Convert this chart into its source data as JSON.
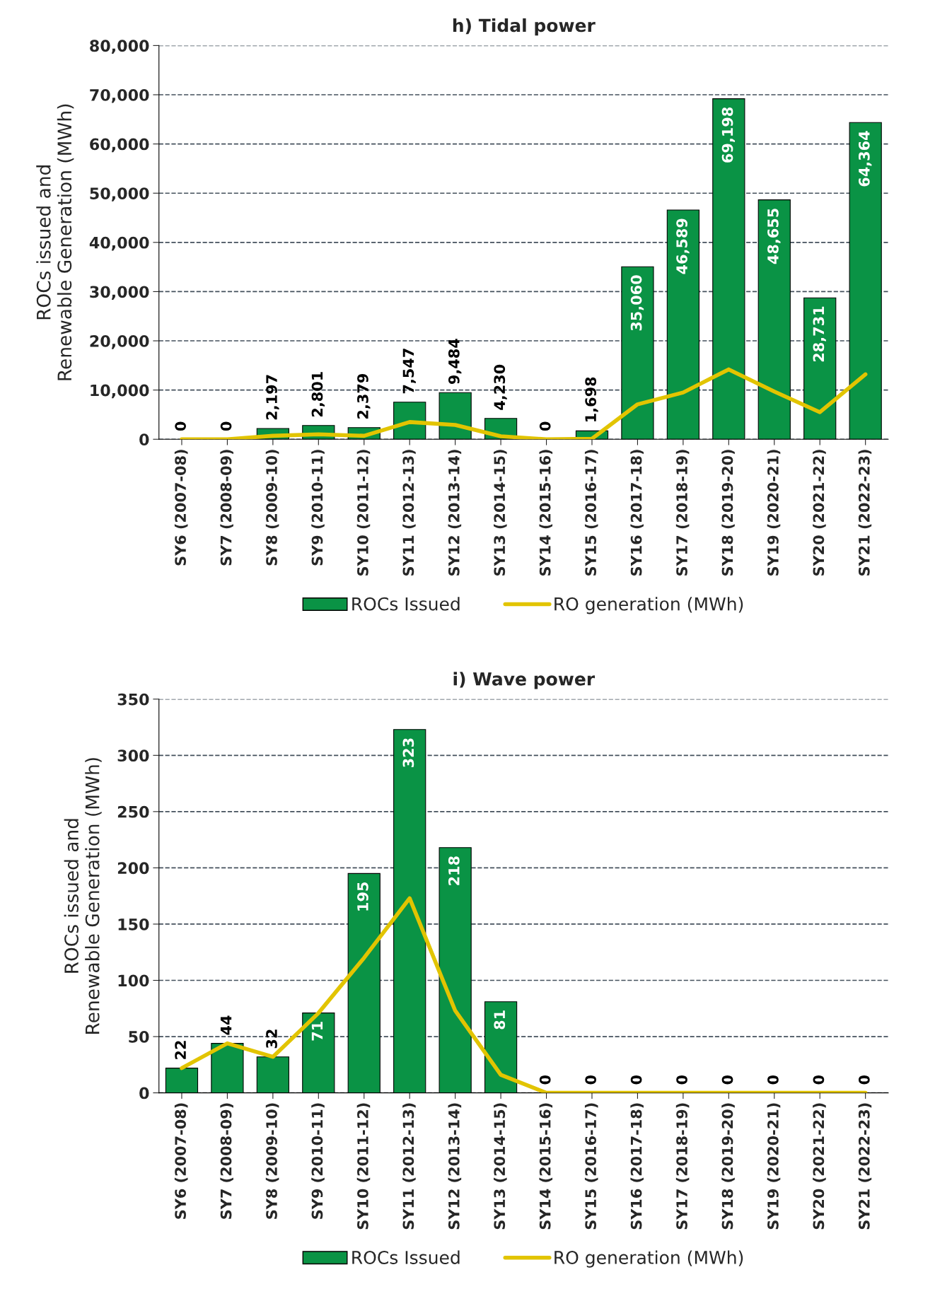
{
  "chart_data": [
    {
      "type": "bar",
      "title": "h) Tidal power",
      "ylabel": "ROCs issued and\nRenewable Generation (MWh)",
      "categories": [
        "SY6 (2007-08)",
        "SY7 (2008-09)",
        "SY8 (2009-10)",
        "SY9 (2010-11)",
        "SY10 (2011-12)",
        "SY11 (2012-13)",
        "SY12 (2013-14)",
        "SY13 (2014-15)",
        "SY14 (2015-16)",
        "SY15 (2016-17)",
        "SY16 (2017-18)",
        "SY17 (2018-19)",
        "SY18 (2019-20)",
        "SY19 (2020-21)",
        "SY20 (2021-22)",
        "SY21 (2022-23)"
      ],
      "series": [
        {
          "name": "ROCs Issued",
          "color": "#0a9345",
          "values": [
            0,
            0,
            2197,
            2801,
            2379,
            7547,
            9484,
            4230,
            0,
            1698,
            35060,
            46589,
            69198,
            48655,
            28731,
            64364
          ],
          "value_labels": [
            "0",
            "0",
            "2,197",
            "2,801",
            "2,379",
            "7,547",
            "9,484",
            "4,230",
            "0",
            "1,698",
            "35,060",
            "46,589",
            "69,198",
            "48,655",
            "28,731",
            "64,364"
          ]
        },
        {
          "name": "RO generation (MWh)",
          "type": "line",
          "color": "#e2c400",
          "values": [
            0,
            0,
            700,
            1000,
            700,
            3500,
            2900,
            600,
            0,
            100,
            7100,
            9500,
            14200,
            9700,
            5500,
            13200
          ]
        }
      ],
      "ylim": [
        0,
        80000
      ],
      "yticks": [
        {
          "value": 0,
          "label": "0"
        },
        {
          "value": 10000,
          "label": "10,000"
        },
        {
          "value": 20000,
          "label": "20,000"
        },
        {
          "value": 30000,
          "label": "30,000"
        },
        {
          "value": 40000,
          "label": "40,000"
        },
        {
          "value": 50000,
          "label": "50,000"
        },
        {
          "value": 60000,
          "label": "60,000"
        },
        {
          "value": 70000,
          "label": "70,000"
        },
        {
          "value": 80000,
          "label": "80,000"
        }
      ],
      "grid": "y",
      "legend": "bottom"
    },
    {
      "type": "bar",
      "title": "i) Wave power",
      "ylabel": "ROCs issued and\nRenewable Generation (MWh)",
      "categories": [
        "SY6 (2007-08)",
        "SY7 (2008-09)",
        "SY8 (2009-10)",
        "SY9 (2010-11)",
        "SY10 (2011-12)",
        "SY11 (2012-13)",
        "SY12 (2013-14)",
        "SY13 (2014-15)",
        "SY14 (2015-16)",
        "SY15 (2016-17)",
        "SY16 (2017-18)",
        "SY17 (2018-19)",
        "SY18 (2019-20)",
        "SY19 (2020-21)",
        "SY20 (2021-22)",
        "SY21 (2022-23)"
      ],
      "series": [
        {
          "name": "ROCs Issued",
          "color": "#0a9345",
          "data_labels": true,
          "values": [
            22,
            44,
            32,
            71,
            195,
            323,
            218,
            81,
            0,
            0,
            0,
            0,
            0,
            0,
            0,
            0
          ]
        },
        {
          "name": "RO generation (MWh)",
          "type": "line",
          "color": "#e2c400",
          "values": [
            22,
            44,
            32,
            71,
            120,
            173,
            73,
            16,
            0,
            0,
            0,
            0,
            0,
            0,
            0,
            0
          ]
        }
      ],
      "ylim": [
        0,
        350
      ],
      "yticks": [
        0,
        50,
        100,
        150,
        200,
        250,
        300,
        350
      ],
      "grid": "y",
      "legend": "bottom"
    }
  ]
}
